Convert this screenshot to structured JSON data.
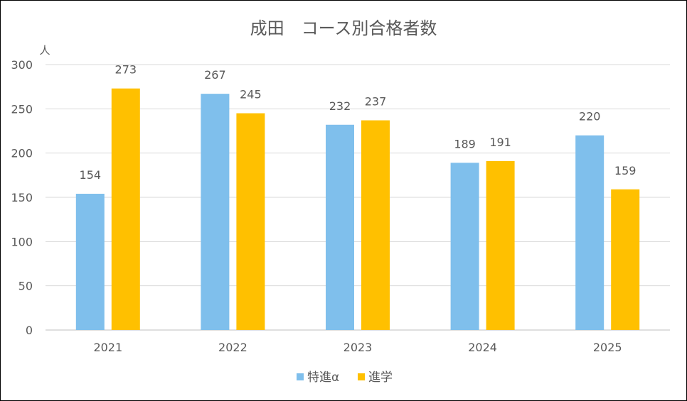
{
  "chart_data": {
    "type": "bar",
    "title": "成田　コース別合格者数",
    "ylabel": "人",
    "xlabel": "",
    "categories": [
      "2021",
      "2022",
      "2023",
      "2024",
      "2025"
    ],
    "series": [
      {
        "name": "特進α",
        "color": "#7FBFEC",
        "values": [
          154,
          267,
          232,
          189,
          220
        ]
      },
      {
        "name": "進学",
        "color": "#FFC000",
        "values": [
          273,
          245,
          237,
          191,
          159
        ]
      }
    ],
    "ylim": [
      0,
      300
    ],
    "yticks": [
      0,
      50,
      100,
      150,
      200,
      250,
      300
    ],
    "grid": true,
    "legend": "bottom",
    "data_labels": true
  }
}
